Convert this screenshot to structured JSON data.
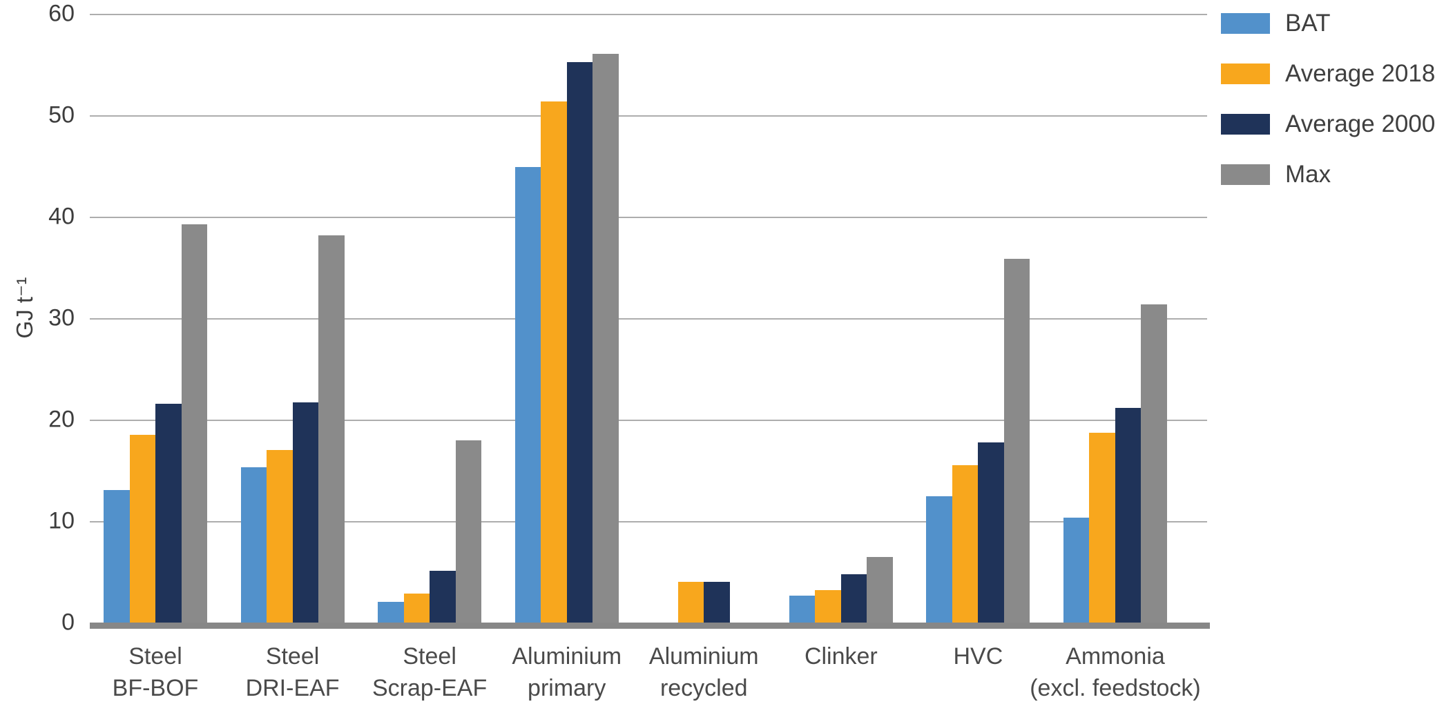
{
  "page": {
    "background": "#ffffff"
  },
  "colors": {
    "axis_text": "#3d3d3d",
    "category_text": "#4a4a4a",
    "gridline": "#adadad",
    "baseline": "#878787"
  },
  "chart_data": {
    "type": "bar",
    "title": "",
    "xlabel": "",
    "ylabel": "GJ t⁻¹",
    "ylim": [
      0,
      60
    ],
    "yticks": [
      0,
      10,
      20,
      30,
      40,
      50,
      60
    ],
    "grid": "horizontal",
    "legend_position": "top-right",
    "categories": [
      "Steel BF-BOF",
      "Steel DRI-EAF",
      "Steel Scrap-EAF",
      "Aluminium primary",
      "Aluminium recycled",
      "Clinker",
      "HVC",
      "Ammonia (excl. feedstock)"
    ],
    "category_label_lines": [
      [
        "Steel",
        "BF-BOF"
      ],
      [
        "Steel",
        "DRI-EAF"
      ],
      [
        "Steel",
        "Scrap-EAF"
      ],
      [
        "Aluminium",
        "primary"
      ],
      [
        "Aluminium",
        "recycled"
      ],
      [
        "Clinker"
      ],
      [
        "HVC"
      ],
      [
        "Ammonia",
        "(excl. feedstock)"
      ]
    ],
    "series": [
      {
        "name": "BAT",
        "color": "#5291cb",
        "values": [
          13.1,
          15.4,
          2.1,
          45.0,
          0,
          2.7,
          12.5,
          10.4
        ]
      },
      {
        "name": "Average 2018",
        "color": "#f8a71d",
        "values": [
          18.6,
          17.1,
          2.9,
          51.4,
          4.1,
          3.3,
          15.6,
          18.8
        ]
      },
      {
        "name": "Average 2000",
        "color": "#1f3359",
        "values": [
          21.6,
          21.8,
          5.2,
          55.3,
          4.1,
          4.8,
          17.8,
          21.2
        ]
      },
      {
        "name": "Max",
        "color": "#8a8a8a",
        "values": [
          39.3,
          38.2,
          18.0,
          56.1,
          0,
          6.5,
          35.9,
          31.4
        ]
      }
    ]
  }
}
